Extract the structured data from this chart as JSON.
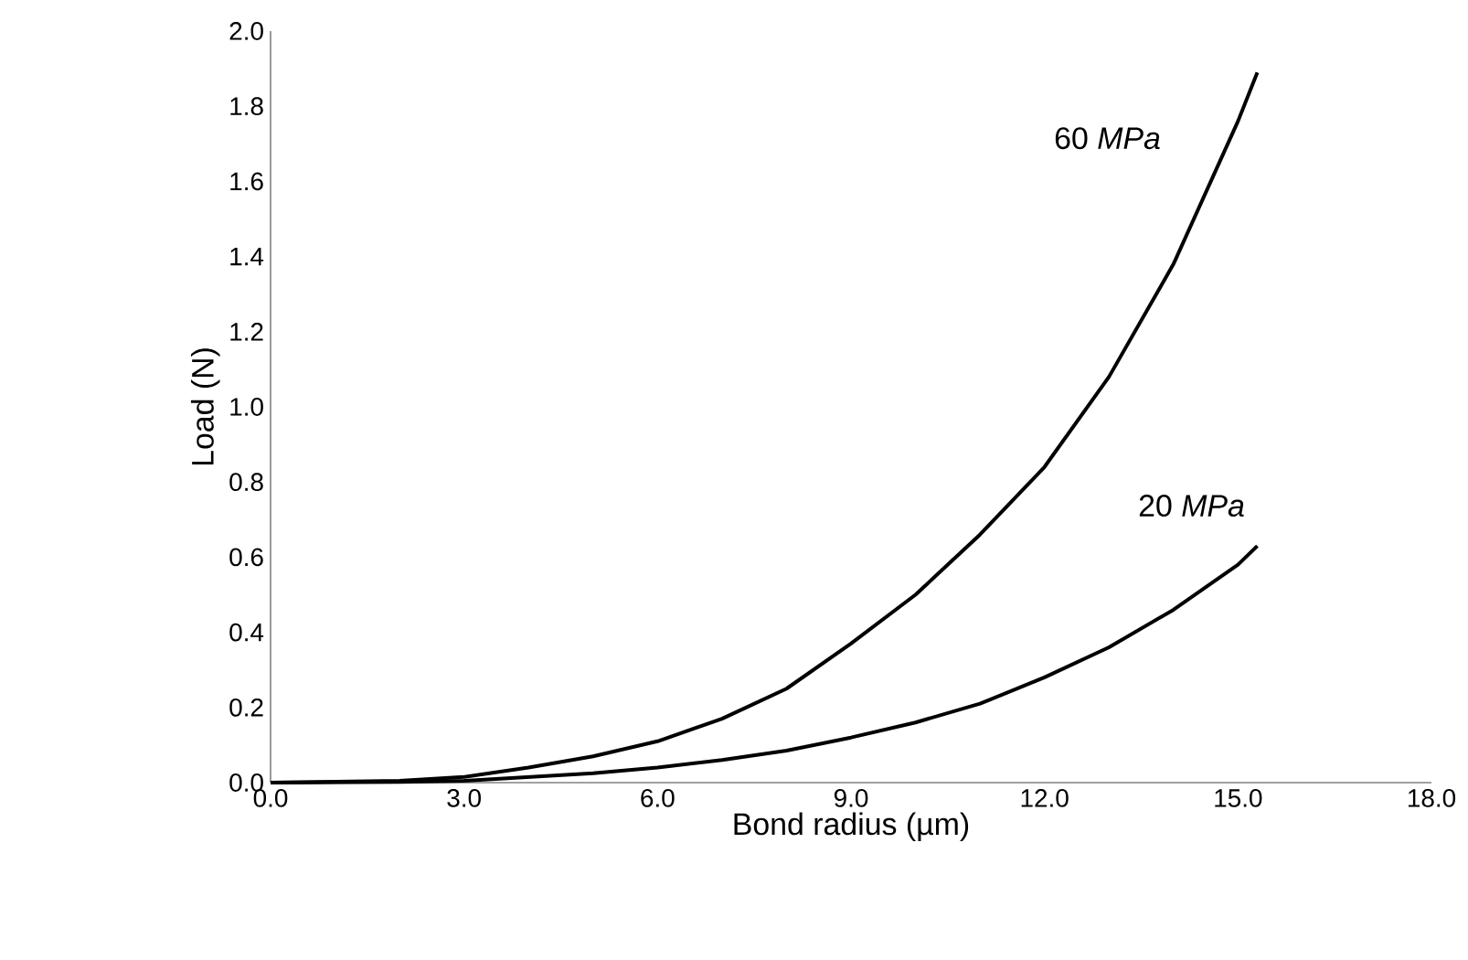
{
  "chart_data": {
    "type": "line",
    "xlabel": "Bond radius (µm)",
    "ylabel": "Load (N)",
    "xlim": [
      0,
      18
    ],
    "ylim": [
      0,
      2
    ],
    "xticks": [
      {
        "value": 0,
        "label": "0.0"
      },
      {
        "value": 3,
        "label": "3.0"
      },
      {
        "value": 6,
        "label": "6.0"
      },
      {
        "value": 9,
        "label": "9.0"
      },
      {
        "value": 12,
        "label": "12.0"
      },
      {
        "value": 15,
        "label": "15.0"
      },
      {
        "value": 18,
        "label": "18.0"
      }
    ],
    "yticks": [
      {
        "value": 0,
        "label": "0.0"
      },
      {
        "value": 0.2,
        "label": "0.2"
      },
      {
        "value": 0.4,
        "label": "0.4"
      },
      {
        "value": 0.6,
        "label": "0.6"
      },
      {
        "value": 0.8,
        "label": "0.8"
      },
      {
        "value": 1.0,
        "label": "1.0"
      },
      {
        "value": 1.2,
        "label": "1.2"
      },
      {
        "value": 1.4,
        "label": "1.4"
      },
      {
        "value": 1.6,
        "label": "1.6"
      },
      {
        "value": 1.8,
        "label": "1.8"
      },
      {
        "value": 2.0,
        "label": "2.0"
      }
    ],
    "x": [
      0,
      2,
      3,
      4,
      5,
      6,
      7,
      8,
      9,
      10,
      11,
      12,
      13,
      14,
      15,
      15.3
    ],
    "series": [
      {
        "name": "60 *MPa*",
        "color": "#000000",
        "values": [
          0,
          0.005,
          0.015,
          0.04,
          0.07,
          0.11,
          0.17,
          0.25,
          0.37,
          0.5,
          0.66,
          0.84,
          1.08,
          1.38,
          1.76,
          1.89
        ]
      },
      {
        "name": "20 *MPa*",
        "color": "#000000",
        "values": [
          0,
          0.002,
          0.005,
          0.015,
          0.025,
          0.04,
          0.06,
          0.085,
          0.12,
          0.16,
          0.21,
          0.28,
          0.36,
          0.46,
          0.58,
          0.63
        ]
      }
    ],
    "grid": false,
    "marker": "none",
    "line_style": "solid"
  }
}
